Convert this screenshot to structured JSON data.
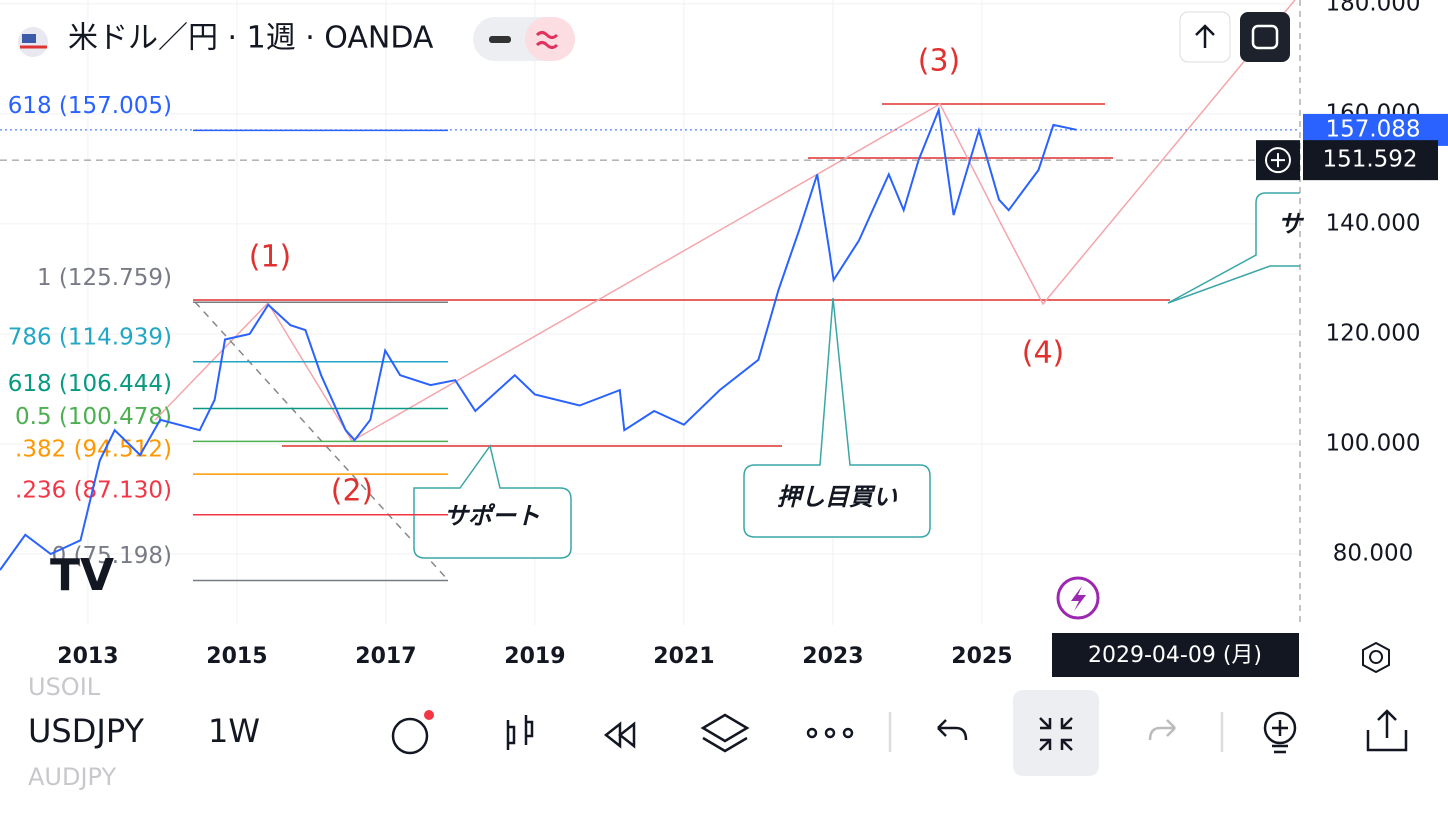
{
  "header": {
    "title": "米ドル／円 · 1週 · OANDA"
  },
  "chart_data": {
    "type": "line",
    "x": [
      2011.82,
      2012.16,
      2012.5,
      2012.9,
      2013.16,
      2013.36,
      2013.7,
      2013.97,
      2014.5,
      2014.7,
      2014.84,
      2015.17,
      2015.42,
      2015.72,
      2015.92,
      2016.13,
      2016.46,
      2016.58,
      2016.79,
      2016.99,
      2017.19,
      2017.6,
      2017.93,
      2018.2,
      2018.73,
      2019.0,
      2019.6,
      2020.14,
      2020.2,
      2020.6,
      2021.0,
      2021.48,
      2022.0,
      2022.27,
      2022.55,
      2022.79,
      2022.95,
      2023.01,
      2023.35,
      2023.75,
      2023.95,
      2024.15,
      2024.42,
      2024.62,
      2024.96,
      2025.23,
      2025.36,
      2025.76,
      2025.96,
      2026.27
    ],
    "values": [
      77.1,
      83.5,
      80,
      82.5,
      97,
      102.5,
      98,
      104.4,
      102.5,
      108,
      119,
      120,
      125.3,
      121.6,
      120.7,
      112.5,
      102.5,
      100.7,
      104.4,
      117,
      112.5,
      110.7,
      111.6,
      106,
      112.5,
      109,
      107,
      109.8,
      102.5,
      106,
      103.5,
      109.8,
      115.3,
      128,
      139,
      149,
      135.3,
      129.8,
      137,
      149,
      142.5,
      151.6,
      160.7,
      141.6,
      157,
      144.4,
      142.5,
      149.8,
      158,
      157.1
    ],
    "color": "#2962ff",
    "xlim": [
      2011.82,
      2029.27
    ],
    "xticks": [
      2013,
      2015,
      2017,
      2019,
      2021,
      2023,
      2025
    ],
    "ylim": [
      67.1,
      180.7
    ],
    "yticks": [
      {
        "value": 80,
        "label": "80.000"
      },
      {
        "value": 100,
        "label": "100.000"
      },
      {
        "value": 120,
        "label": "120.000"
      },
      {
        "value": 140,
        "label": "140.000"
      },
      {
        "value": 160,
        "label": "160.000"
      },
      {
        "value": 180,
        "label": "180.000"
      }
    ],
    "fib_levels": [
      {
        "value": 157.005,
        "label": "618 (157.005)",
        "color": "#2962ff"
      },
      {
        "value": 125.759,
        "label": "1 (125.759)",
        "color": "#787b86"
      },
      {
        "value": 114.939,
        "label": "786 (114.939)",
        "color": "#22a6c5"
      },
      {
        "value": 106.444,
        "label": "618 (106.444)",
        "color": "#089981"
      },
      {
        "value": 100.478,
        "label": "0.5 (100.478)",
        "color": "#4caf50"
      },
      {
        "value": 94.512,
        "label": ".382 (94.512)",
        "color": "#ff9800"
      },
      {
        "value": 87.13,
        "label": ".236 (87.130)",
        "color": "#f23645"
      },
      {
        "value": 75.198,
        "label": "0 (75.198)",
        "color": "#787b86"
      }
    ],
    "annotations": [
      "(1)",
      "(2)",
      "(3)",
      "(4)",
      "サポート",
      "押し目買い",
      "サ"
    ],
    "last_price": 157.088,
    "crosshair_price": 151.592,
    "crosshair_date": "2029-04-09 (月)"
  },
  "toolbar": {
    "above": "USOIL",
    "symbol": "USDJPY",
    "interval": "1W",
    "below": "AUDJPY"
  }
}
